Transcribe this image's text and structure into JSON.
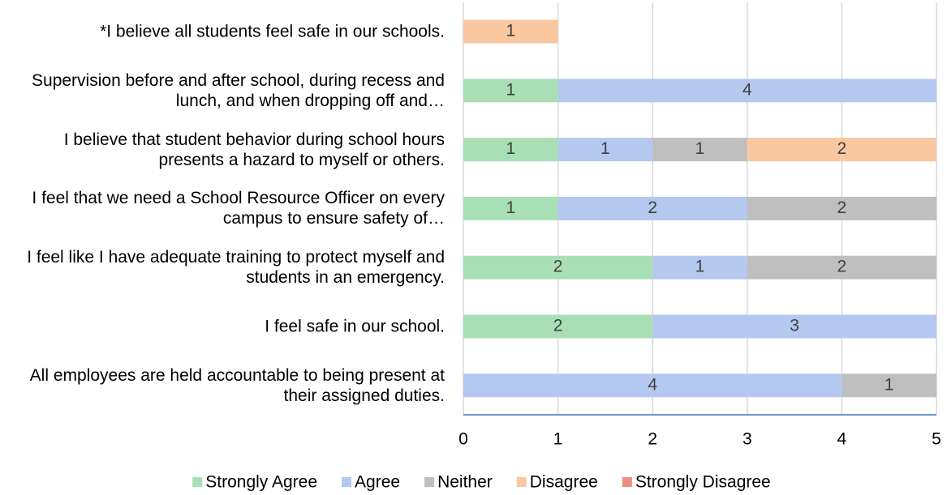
{
  "chart_data": {
    "type": "stacked_bar_horizontal",
    "categories": [
      "*I believe all students feel safe in our schools.",
      "Supervision before and after school, during recess and lunch, and when dropping off and…",
      "I believe that student behavior during school hours presents a hazard to myself or others.",
      "I feel that we need a School Resource Officer on every campus to ensure safety of…",
      "I feel like I have adequate training to protect myself and students in an emergency.",
      "I feel safe in our school.",
      "All employees are held accountable to being present at their assigned duties."
    ],
    "series": [
      {
        "name": "Strongly Agree",
        "color": "#a9dfb4",
        "values": [
          null,
          1,
          1,
          1,
          2,
          2,
          null
        ]
      },
      {
        "name": "Agree",
        "color": "#b4c8f0",
        "values": [
          null,
          4,
          1,
          2,
          1,
          3,
          4
        ]
      },
      {
        "name": "Neither",
        "color": "#bfbfbf",
        "values": [
          null,
          null,
          1,
          2,
          2,
          null,
          1
        ]
      },
      {
        "name": "Disagree",
        "color": "#f9c7a0",
        "values": [
          1,
          null,
          2,
          null,
          null,
          null,
          null
        ]
      },
      {
        "name": "Strongly Disagree",
        "color": "#f08c82",
        "values": [
          null,
          null,
          null,
          null,
          null,
          null,
          null
        ]
      }
    ],
    "xlim": [
      0,
      5
    ],
    "xticks": [
      0,
      1,
      2,
      3,
      4,
      5
    ],
    "grid": true,
    "legend": "bottom"
  }
}
